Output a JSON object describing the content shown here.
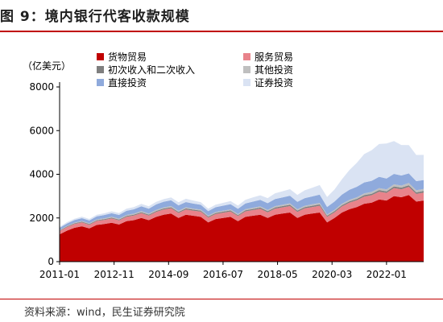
{
  "header": {
    "title": "图 9：境内银行代客收款规模"
  },
  "footer": {
    "source": "资料来源：wind，民生证券研究院"
  },
  "chart_data": {
    "type": "area",
    "stacked": true,
    "unit_label": "（亿美元）",
    "ylim": [
      0,
      8000
    ],
    "yticks": [
      0,
      2000,
      4000,
      6000,
      8000
    ],
    "xtick_labels": [
      "2011-01",
      "2012-11",
      "2014-09",
      "2016-07",
      "2018-05",
      "2020-03",
      "2022-01"
    ],
    "grid": false,
    "legend_position": "top",
    "x": [
      "2011-01",
      "2011-04",
      "2011-07",
      "2011-10",
      "2012-01",
      "2012-04",
      "2012-07",
      "2012-10",
      "2013-01",
      "2013-04",
      "2013-07",
      "2013-10",
      "2014-01",
      "2014-04",
      "2014-07",
      "2014-10",
      "2015-01",
      "2015-04",
      "2015-07",
      "2015-10",
      "2016-01",
      "2016-04",
      "2016-07",
      "2016-10",
      "2017-01",
      "2017-04",
      "2017-07",
      "2017-10",
      "2018-01",
      "2018-04",
      "2018-07",
      "2018-10",
      "2019-01",
      "2019-04",
      "2019-07",
      "2019-10",
      "2020-01",
      "2020-04",
      "2020-07",
      "2020-10",
      "2021-01",
      "2021-04",
      "2021-07",
      "2021-10",
      "2022-01",
      "2022-04",
      "2022-07",
      "2022-10",
      "2023-01",
      "2023-04"
    ],
    "series": [
      {
        "name": "货物贸易",
        "color": "#c00000",
        "values": [
          1250,
          1420,
          1550,
          1620,
          1520,
          1680,
          1720,
          1780,
          1700,
          1850,
          1900,
          2000,
          1900,
          2050,
          2150,
          2200,
          2000,
          2150,
          2100,
          2050,
          1800,
          1950,
          2000,
          2050,
          1850,
          2050,
          2100,
          2150,
          2000,
          2150,
          2200,
          2250,
          2000,
          2150,
          2200,
          2250,
          1800,
          2000,
          2250,
          2400,
          2500,
          2650,
          2700,
          2850,
          2800,
          3000,
          2950,
          3050,
          2750,
          2800
        ]
      },
      {
        "name": "服务贸易",
        "color": "#e8838b",
        "values": [
          150,
          160,
          170,
          175,
          170,
          180,
          190,
          195,
          190,
          200,
          210,
          220,
          210,
          225,
          235,
          240,
          230,
          240,
          235,
          240,
          220,
          230,
          240,
          245,
          235,
          250,
          260,
          270,
          260,
          275,
          285,
          295,
          280,
          290,
          300,
          310,
          250,
          260,
          280,
          300,
          310,
          330,
          340,
          355,
          350,
          370,
          365,
          375,
          350,
          360
        ]
      },
      {
        "name": "初次收入和二次收入",
        "color": "#7f7f7f",
        "values": [
          30,
          32,
          34,
          35,
          34,
          36,
          38,
          39,
          38,
          40,
          42,
          44,
          42,
          45,
          47,
          48,
          46,
          48,
          47,
          48,
          44,
          46,
          48,
          49,
          47,
          50,
          52,
          54,
          52,
          55,
          57,
          59,
          56,
          58,
          60,
          62,
          50,
          52,
          56,
          60,
          62,
          66,
          68,
          71,
          70,
          74,
          73,
          75,
          70,
          72
        ]
      },
      {
        "name": "其他投资",
        "color": "#bfbfbf",
        "values": [
          20,
          25,
          30,
          30,
          30,
          35,
          35,
          40,
          40,
          45,
          45,
          50,
          45,
          50,
          50,
          55,
          50,
          50,
          45,
          45,
          40,
          45,
          45,
          50,
          45,
          50,
          55,
          55,
          55,
          60,
          60,
          65,
          60,
          60,
          65,
          65,
          55,
          60,
          65,
          70,
          75,
          80,
          85,
          90,
          90,
          95,
          95,
          100,
          95,
          95
        ]
      },
      {
        "name": "直接投资",
        "color": "#8faadc",
        "values": [
          100,
          110,
          120,
          130,
          130,
          140,
          150,
          160,
          170,
          190,
          200,
          220,
          230,
          250,
          260,
          270,
          250,
          240,
          230,
          220,
          210,
          220,
          230,
          240,
          240,
          260,
          280,
          300,
          310,
          330,
          340,
          350,
          340,
          350,
          360,
          380,
          350,
          380,
          420,
          460,
          480,
          500,
          510,
          520,
          500,
          480,
          460,
          440,
          420,
          410
        ]
      },
      {
        "name": "证券投资",
        "color": "#dae3f3",
        "values": [
          50,
          60,
          60,
          70,
          70,
          80,
          80,
          90,
          90,
          100,
          100,
          110,
          110,
          120,
          120,
          130,
          140,
          150,
          140,
          120,
          110,
          120,
          130,
          140,
          150,
          170,
          190,
          210,
          230,
          260,
          280,
          300,
          320,
          360,
          400,
          440,
          450,
          550,
          700,
          900,
          1100,
          1300,
          1400,
          1500,
          1600,
          1500,
          1400,
          1300,
          1200,
          1150
        ]
      }
    ]
  }
}
